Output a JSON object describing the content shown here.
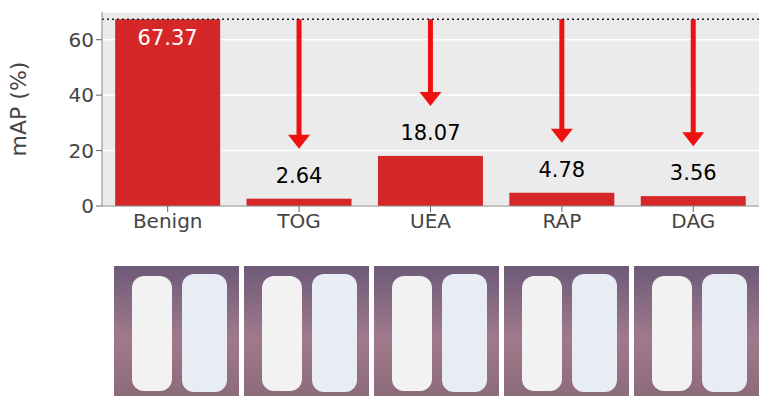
{
  "chart_data": {
    "type": "bar",
    "categories": [
      "Benign",
      "TOG",
      "UEA",
      "RAP",
      "DAG"
    ],
    "values": [
      67.37,
      2.64,
      18.07,
      4.78,
      3.56
    ],
    "color": "#d62728",
    "ylim": [
      0,
      70
    ],
    "yticks": [
      0,
      20,
      40,
      60
    ],
    "ylabel": "mAP (%)",
    "grid": true,
    "data_labels": true
  }
}
